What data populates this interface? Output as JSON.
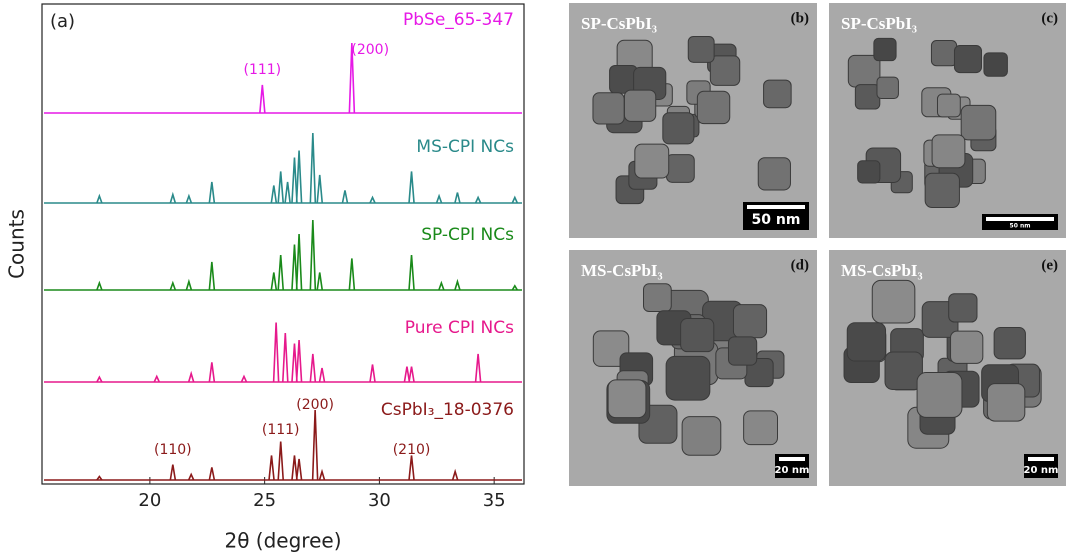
{
  "chart_data": {
    "type": "peaks",
    "panel_label": "(a)",
    "x_label": "2θ (degree)",
    "y_label": "Counts",
    "xlim": [
      15.3,
      36.3
    ],
    "xticks": [
      20,
      25,
      30,
      35
    ],
    "series": [
      {
        "name": "PbSe_65-347",
        "color": "#e619e6",
        "x": [
          24.9,
          28.8
        ],
        "values": [
          40,
          100
        ],
        "peak_labels": [
          {
            "text": "(111)",
            "x": 24.9
          },
          {
            "text": "(200)",
            "x": 29.6
          }
        ]
      },
      {
        "name": "MS-CPI NCs",
        "color": "#2a8a8a",
        "x": [
          17.8,
          21.0,
          21.7,
          22.7,
          25.4,
          25.7,
          26.0,
          26.3,
          26.5,
          27.1,
          27.4,
          28.5,
          29.7,
          31.4,
          32.6,
          33.4,
          34.3,
          35.9
        ],
        "values": [
          10,
          12,
          10,
          30,
          25,
          45,
          30,
          65,
          75,
          100,
          40,
          18,
          8,
          45,
          10,
          15,
          8,
          8
        ],
        "peak_labels": []
      },
      {
        "name": "SP-CPI NCs",
        "color": "#1a8a1a",
        "x": [
          17.8,
          21.0,
          21.7,
          22.7,
          25.4,
          25.7,
          26.3,
          26.5,
          27.1,
          27.4,
          28.8,
          31.4,
          32.7,
          33.4,
          35.9
        ],
        "values": [
          10,
          10,
          12,
          40,
          25,
          50,
          65,
          80,
          100,
          25,
          45,
          50,
          10,
          12,
          6
        ],
        "peak_labels": []
      },
      {
        "name": "Pure CPI NCs",
        "color": "#e6198c",
        "x": [
          17.8,
          20.3,
          21.8,
          22.7,
          24.1,
          25.5,
          25.9,
          26.3,
          26.5,
          27.1,
          27.5,
          29.7,
          31.2,
          31.4,
          34.3
        ],
        "values": [
          7,
          8,
          12,
          28,
          8,
          85,
          70,
          55,
          60,
          40,
          20,
          25,
          22,
          22,
          40
        ],
        "peak_labels": []
      },
      {
        "name": "CsPbI₃_18-0376",
        "color": "#8b1a1a",
        "x": [
          17.8,
          21.0,
          21.8,
          22.7,
          25.3,
          25.7,
          26.3,
          26.5,
          27.2,
          27.5,
          31.4,
          33.3
        ],
        "values": [
          5,
          22,
          8,
          18,
          35,
          55,
          35,
          30,
          100,
          12,
          35,
          12
        ],
        "peak_labels": [
          {
            "text": "(110)",
            "x": 21.0
          },
          {
            "text": "(111)",
            "x": 25.7
          },
          {
            "text": "(200)",
            "x": 27.2
          },
          {
            "text": "(210)",
            "x": 31.4
          }
        ]
      }
    ]
  },
  "images": [
    {
      "label": "SP-CsPbI₃",
      "panel": "(b)",
      "scale_bar": "50 nm"
    },
    {
      "label": "SP-CsPbI₃",
      "panel": "(c)",
      "scale_bar": "50 nm"
    },
    {
      "label": "MS-CsPbI₃",
      "panel": "(d)",
      "scale_bar": "20 nm"
    },
    {
      "label": "MS-CsPbI₃",
      "panel": "(e)",
      "scale_bar": "20 nm"
    }
  ]
}
